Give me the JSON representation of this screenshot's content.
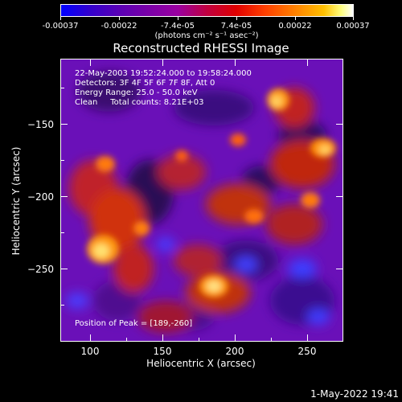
{
  "colorbar": {
    "tick_labels": [
      "-0.00037",
      "-0.00022",
      "-7.4e-05",
      "7.4e-05",
      "0.00022",
      "0.00037"
    ],
    "unit": "(photons cm⁻² s⁻¹ asec⁻²)",
    "colors": [
      "#0000ff",
      "#7a00a8",
      "#c00040",
      "#ff4000",
      "#ffc000",
      "#ffffff"
    ]
  },
  "plot": {
    "title": "Reconstructed RHESSI Image",
    "annotations": {
      "time_range": "22-May-2003 19:52:24.000 to 19:58:24.000",
      "detectors": "Detectors: 3F 4F 5F 6F 7F 8F, Att 0",
      "energy": "Energy Range: 25.0 - 50.0 keV",
      "method": "Clean     Total counts: 8.21E+03",
      "peak": "Position of Peak = [189,-260]"
    }
  },
  "axes": {
    "x_label": "Heliocentric X (arcsec)",
    "y_label": "Heliocentric Y (arcsec)",
    "x_ticks": [
      "100",
      "150",
      "200",
      "250"
    ],
    "y_ticks": [
      "−150",
      "−200",
      "−250"
    ],
    "x_range": [
      80,
      272
    ],
    "y_range": [
      -296,
      -108
    ]
  },
  "footer": {
    "timestamp": "1-May-2022 19:41"
  }
}
